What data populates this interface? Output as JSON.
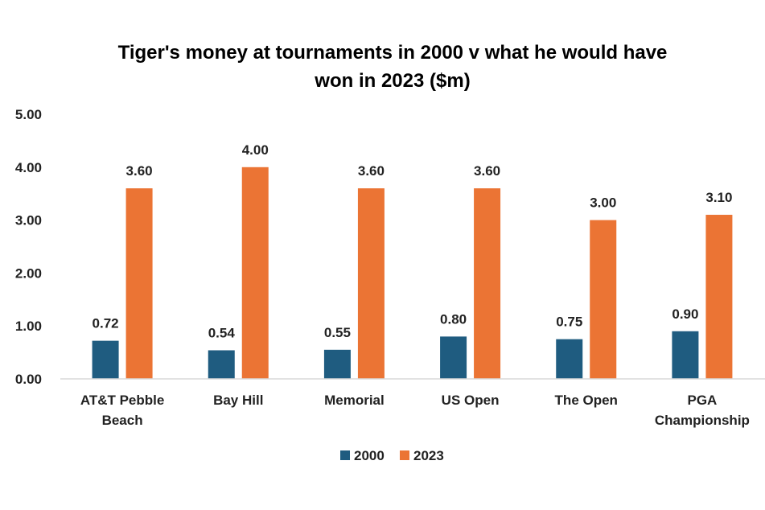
{
  "chart_data": {
    "type": "bar",
    "title": "Tiger's money at tournaments in 2000 v what he would have won in 2023 ($m)",
    "title_lines": [
      "Tiger's money at tournaments in 2000 v what he would have",
      "won in 2023 ($m)"
    ],
    "categories": [
      "AT&T Pebble Beach",
      "Bay Hill",
      "Memorial",
      "US Open",
      "The Open",
      "PGA Championship"
    ],
    "category_lines": [
      [
        "AT&T Pebble",
        "Beach"
      ],
      [
        "Bay Hill"
      ],
      [
        "Memorial"
      ],
      [
        "US Open"
      ],
      [
        "The Open"
      ],
      [
        "PGA",
        "Championship"
      ]
    ],
    "series": [
      {
        "name": "2000",
        "color": "#1F5C80",
        "values": [
          0.72,
          0.54,
          0.55,
          0.8,
          0.75,
          0.9
        ],
        "labels": [
          "0.72",
          "0.54",
          "0.55",
          "0.80",
          "0.75",
          "0.90"
        ]
      },
      {
        "name": "2023",
        "color": "#EB7434",
        "values": [
          3.6,
          4.0,
          3.6,
          3.6,
          3.0,
          3.1
        ],
        "labels": [
          "3.60",
          "4.00",
          "3.60",
          "3.60",
          "3.00",
          "3.10"
        ]
      }
    ],
    "yticks": [
      "0.00",
      "1.00",
      "2.00",
      "3.00",
      "4.00",
      "5.00"
    ],
    "ylim": [
      0,
      5
    ],
    "xlabel": "",
    "ylabel": "",
    "grid": false,
    "legend": "bottom",
    "axis_color": "#D9D9D9"
  }
}
